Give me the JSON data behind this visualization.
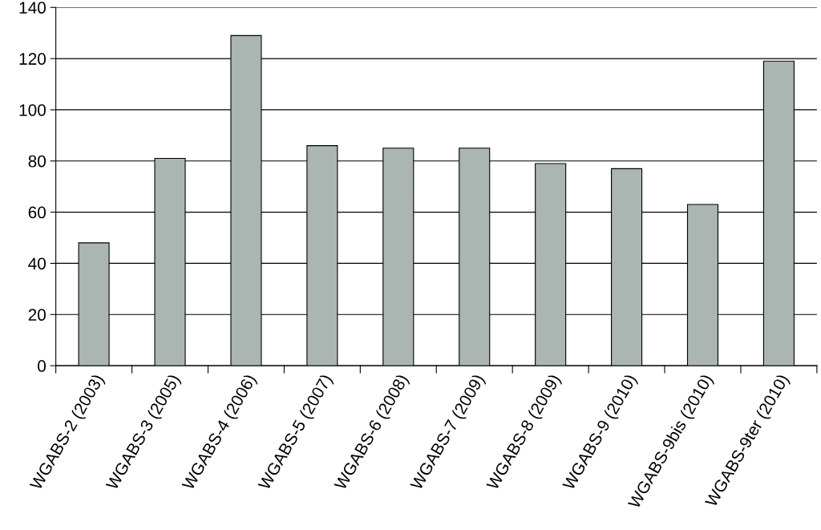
{
  "chart_data": {
    "type": "bar",
    "categories": [
      "WGABS-2 (2003)",
      "WGABS-3 (2005)",
      "WGABS-4 (2006)",
      "WGABS-5 (2007)",
      "WGABS-6 (2008)",
      "WGABS-7 (2009)",
      "WGABS-8 (2009)",
      "WGABS-9 (2010)",
      "WGABS-9bis (2010)",
      "WGABS-9ter (2010)"
    ],
    "values": [
      48,
      81,
      129,
      86,
      85,
      85,
      79,
      77,
      63,
      119
    ],
    "color": "#abb5b2",
    "ylim": [
      0,
      140
    ],
    "yticks": [
      0,
      20,
      40,
      60,
      80,
      100,
      120,
      140
    ],
    "grid": "y"
  }
}
